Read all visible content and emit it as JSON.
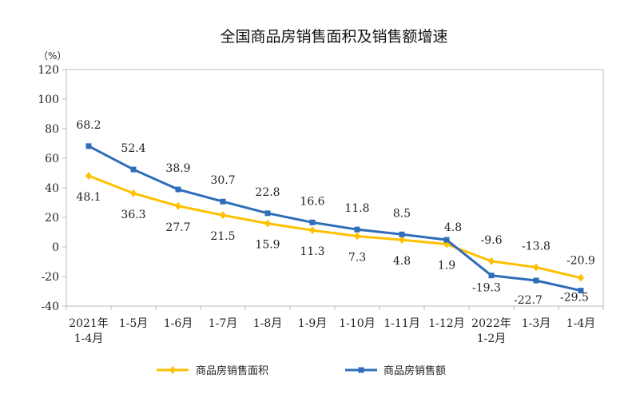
{
  "chart_data": {
    "type": "line",
    "title": "全国商品房销售面积及销售额增速",
    "ylabel": "（%）",
    "xlabel": "",
    "ylim": [
      -40,
      120
    ],
    "yticks": [
      -40,
      -20,
      0,
      20,
      40,
      60,
      80,
      100,
      120
    ],
    "categories": [
      [
        "2021年",
        "1-4月"
      ],
      [
        "1-5月"
      ],
      [
        "1-6月"
      ],
      [
        "1-7月"
      ],
      [
        "1-8月"
      ],
      [
        "1-9月"
      ],
      [
        "1-10月"
      ],
      [
        "1-11月"
      ],
      [
        "1-12月"
      ],
      [
        "2022年",
        "1-2月"
      ],
      [
        "1-3月"
      ],
      [
        "1-4月"
      ]
    ],
    "grid": false,
    "legend_position": "bottom",
    "series": [
      {
        "name": "商品房销售面积",
        "color": "#FFC000",
        "marker": "diamond",
        "values": [
          48.1,
          36.3,
          27.7,
          21.5,
          15.9,
          11.3,
          7.3,
          4.8,
          1.9,
          -9.6,
          -13.8,
          -20.9
        ]
      },
      {
        "name": "商品房销售额",
        "color": "#2E6DB8",
        "marker": "square",
        "values": [
          68.2,
          52.4,
          38.9,
          30.7,
          22.8,
          16.6,
          11.8,
          8.5,
          4.8,
          -19.3,
          -22.7,
          -29.5
        ]
      }
    ]
  }
}
